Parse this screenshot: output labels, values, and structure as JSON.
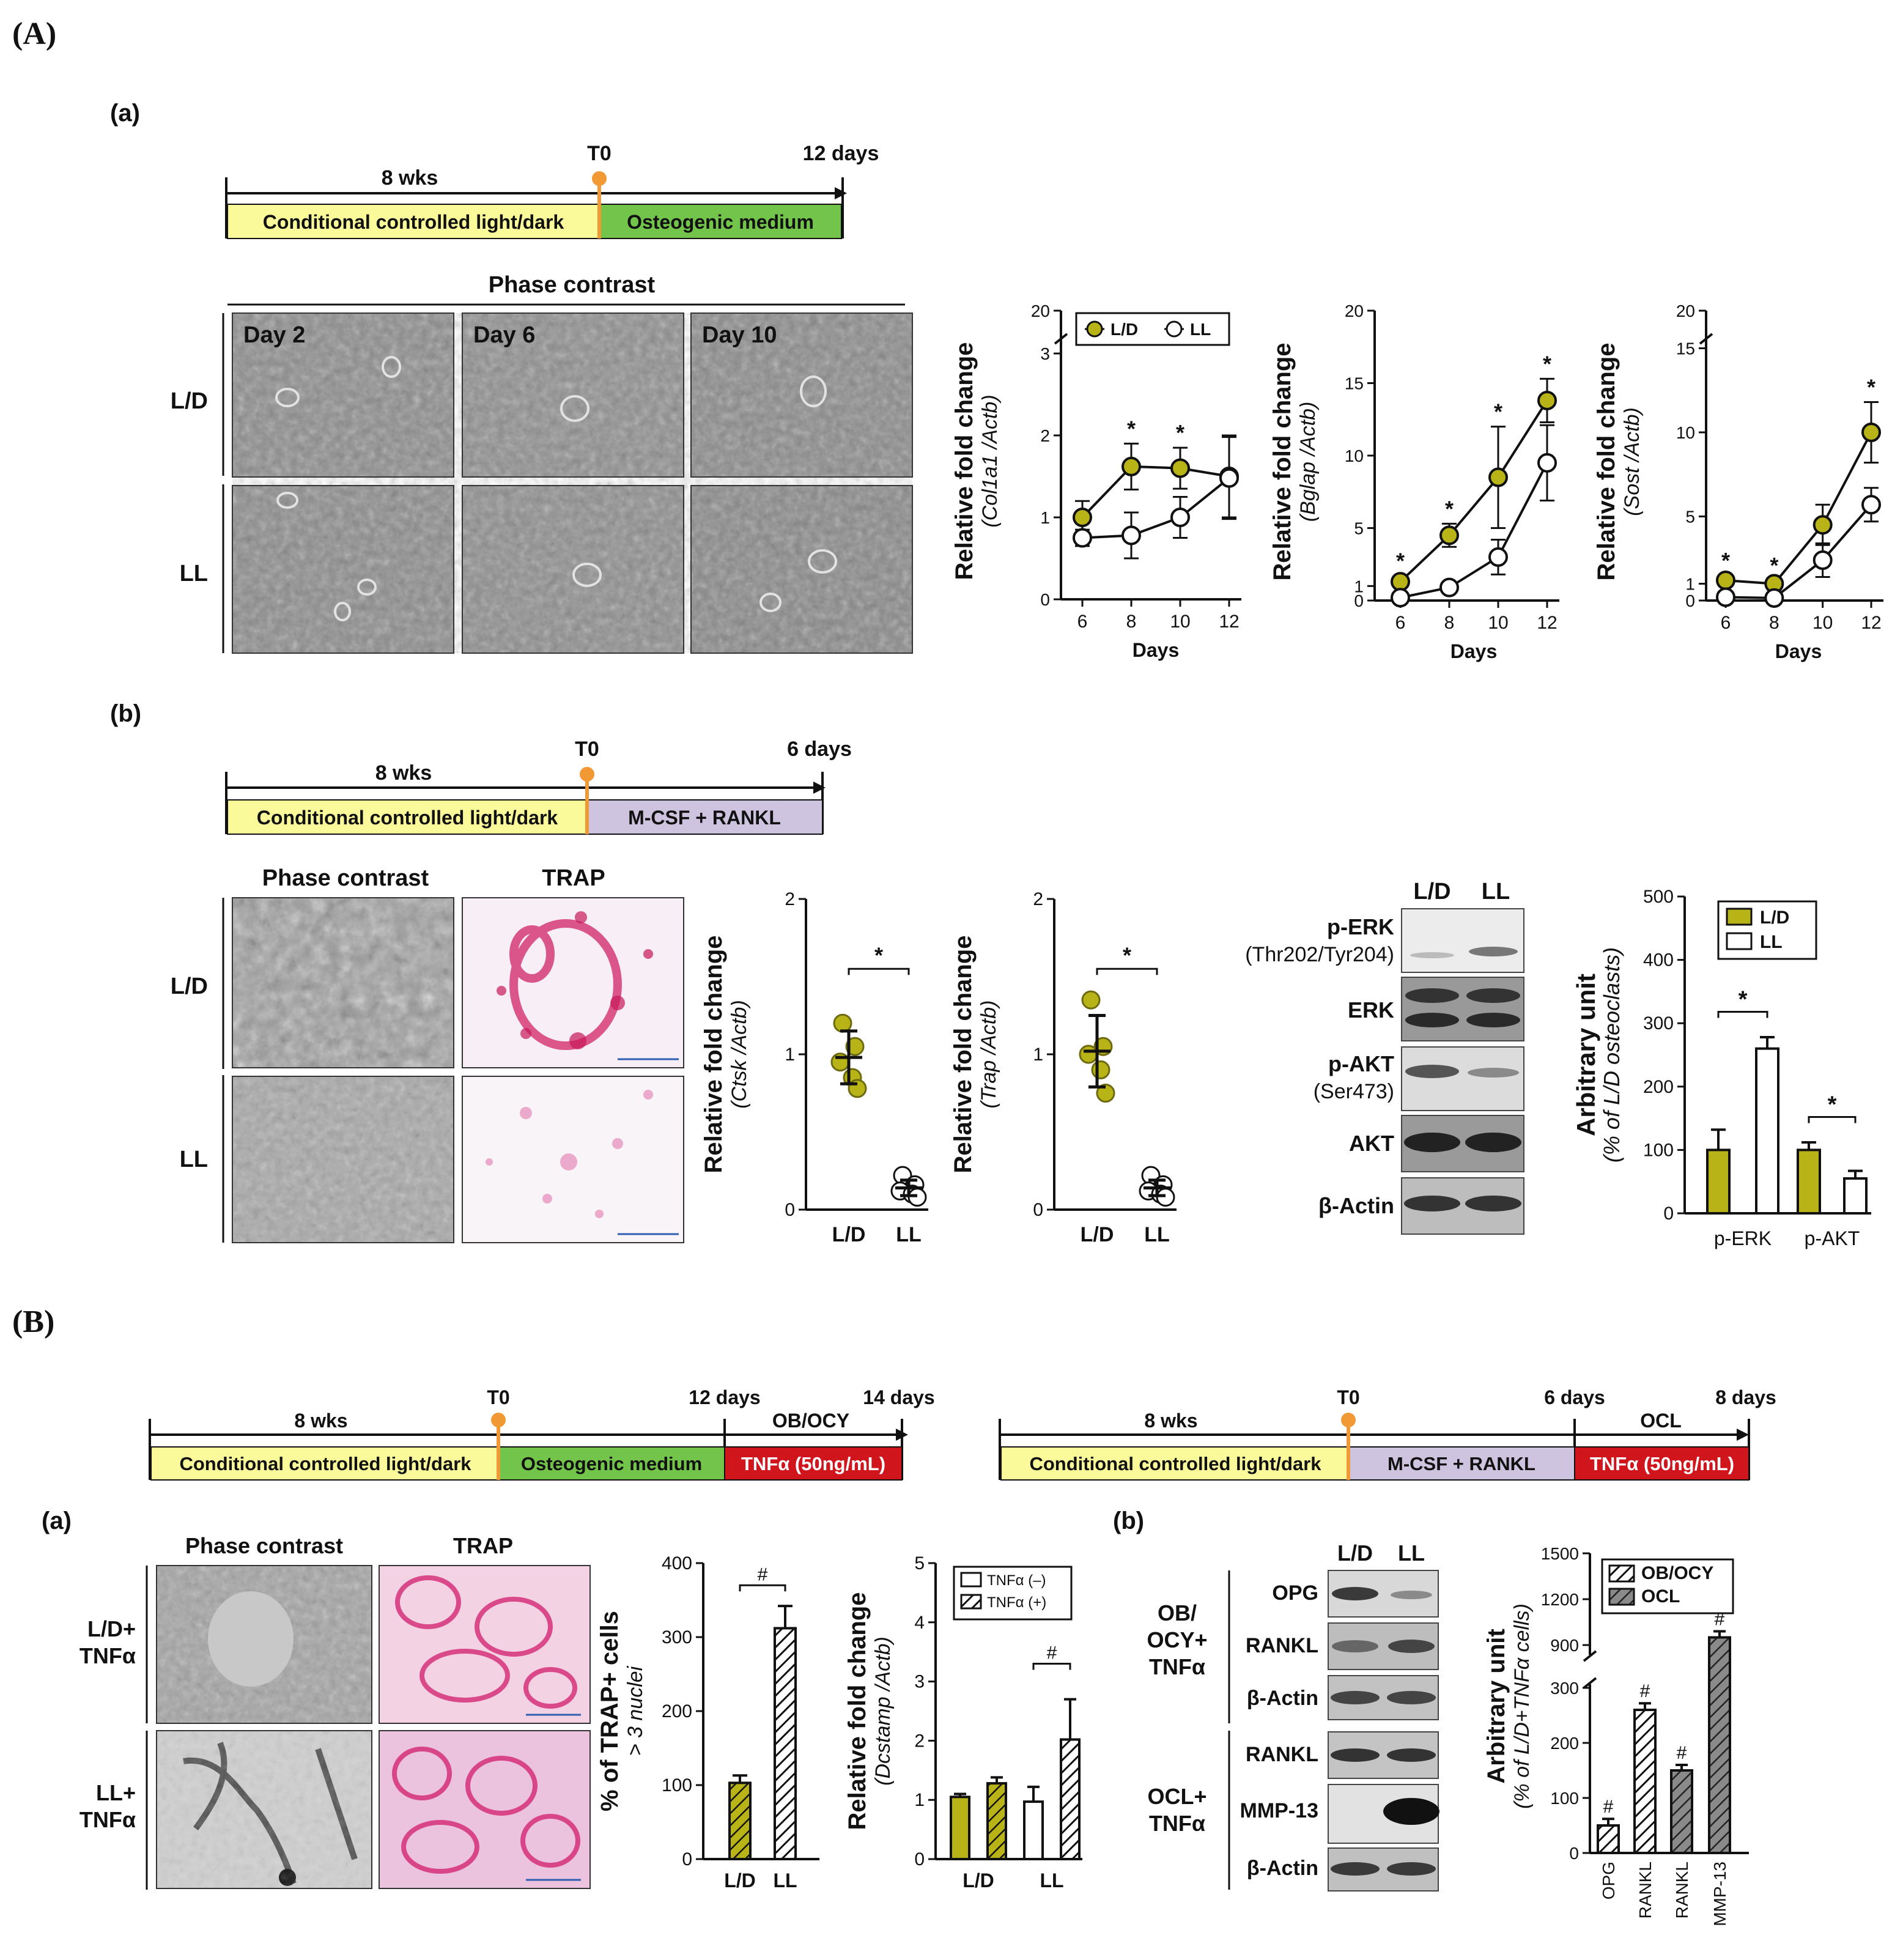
{
  "panel_labels": {
    "A": "(A)",
    "B": "(B)",
    "Aa": "(a)",
    "Ab": "(b)",
    "Ba": "(a)",
    "Bb": "(b)"
  },
  "timelines": {
    "Aa": {
      "left": "8 wks",
      "mark": "T0",
      "end": "12 days",
      "seg1": "Conditional controlled light/dark",
      "seg2": "Osteogenic medium"
    },
    "Ab": {
      "left": "8 wks",
      "mark": "T0",
      "end": "6 days",
      "seg1": "Conditional controlled light/dark",
      "seg2": "M-CSF + RANKL"
    },
    "Ba1": {
      "left": "8 wks",
      "mark": "T0",
      "mid": "12 days",
      "end": "14 days",
      "tail": "OB/OCY",
      "seg1": "Conditional controlled light/dark",
      "seg2": "Osteogenic medium",
      "seg3": "TNFα (50ng/mL)"
    },
    "Ba2": {
      "left": "8 wks",
      "mark": "T0",
      "mid": "6 days",
      "end": "8 days",
      "tail": "OCL",
      "seg1": "Conditional controlled light/dark",
      "seg2": "M-CSF + RANKL",
      "seg3": "TNFα (50ng/mL)"
    }
  },
  "micrographs": {
    "Aa": {
      "header": "Phase contrast",
      "days": [
        "Day 2",
        "Day 6",
        "Day 10"
      ],
      "rows": [
        "L/D",
        "LL"
      ]
    },
    "Ab": {
      "headers": [
        "Phase contrast",
        "TRAP"
      ],
      "rows": [
        "L/D",
        "LL"
      ]
    },
    "Ba": {
      "headers": [
        "Phase contrast",
        "TRAP"
      ],
      "rows": [
        "L/D+\nTNFα",
        "LL+\nTNFα"
      ]
    }
  },
  "westerns": {
    "Ab": {
      "lanes": [
        "L/D",
        "LL"
      ],
      "bands": [
        "p-ERK",
        "(Thr202/Tyr204)",
        "ERK",
        "p-AKT",
        "(Ser473)",
        "AKT",
        "β-Actin"
      ]
    },
    "Bb": {
      "lanes": [
        "L/D",
        "LL"
      ],
      "group1": "OB/\nOCY+\nTNFα",
      "group2": "OCL+\nTNFα",
      "bands1": [
        "OPG",
        "RANKL",
        "β-Actin"
      ],
      "bands2": [
        "RANKL",
        "MMP-13",
        "β-Actin"
      ]
    }
  },
  "chart_data": [
    {
      "type": "line",
      "id": "col1a1",
      "ylabel": "Relative fold change",
      "ylabel2": "(Col1a1 /Actb)",
      "xlabel": "Days",
      "x": [
        6,
        8,
        10,
        12
      ],
      "series": [
        {
          "name": "L/D",
          "values": [
            1.0,
            1.62,
            1.6,
            1.5
          ],
          "err": [
            0.2,
            0.28,
            0.25,
            0.5
          ],
          "fill": "#b8b418"
        },
        {
          "name": "LL",
          "values": [
            0.75,
            0.78,
            1.0,
            1.48
          ],
          "err": [
            0.1,
            0.28,
            0.25,
            0.5
          ],
          "fill": "#ffffff"
        }
      ],
      "sig": [
        "",
        "*",
        "*",
        ""
      ],
      "yticks": [
        "0",
        "1",
        "2",
        "3",
        "20"
      ],
      "xticks": [
        "6",
        "8",
        "10",
        "12"
      ]
    },
    {
      "type": "line",
      "id": "bglap",
      "ylabel": "Relative fold change",
      "ylabel2": "(Bglap /Actb)",
      "xlabel": "Days",
      "x": [
        6,
        8,
        10,
        12
      ],
      "series": [
        {
          "name": "L/D",
          "values": [
            1.3,
            4.5,
            8.5,
            13.8
          ],
          "err": [
            0.4,
            0.8,
            3.5,
            1.5
          ],
          "fill": "#b8b418"
        },
        {
          "name": "LL",
          "values": [
            0.2,
            0.9,
            3.0,
            9.5
          ],
          "err": [
            0.1,
            0.3,
            1.2,
            2.6
          ],
          "fill": "#ffffff"
        }
      ],
      "sig": [
        "*",
        "*",
        "*",
        "*"
      ],
      "yticks": [
        "0",
        "1",
        "5",
        "10",
        "15",
        "20"
      ],
      "xticks": [
        "6",
        "8",
        "10",
        "12"
      ]
    },
    {
      "type": "line",
      "id": "sost",
      "ylabel": "Relative fold change",
      "ylabel2": "(Sost /Actb)",
      "xlabel": "Days",
      "x": [
        6,
        8,
        10,
        12
      ],
      "series": [
        {
          "name": "L/D",
          "values": [
            1.2,
            1.0,
            4.5,
            10.0
          ],
          "err": [
            0.3,
            0.2,
            1.2,
            1.8
          ],
          "fill": "#b8b418"
        },
        {
          "name": "LL",
          "values": [
            0.2,
            0.15,
            2.4,
            5.7
          ],
          "err": [
            0.1,
            0.1,
            1.0,
            1.0
          ],
          "fill": "#ffffff"
        }
      ],
      "sig": [
        "*",
        "*",
        "",
        "*"
      ],
      "yticks": [
        "0",
        "1",
        "5",
        "10",
        "15",
        "20"
      ],
      "xticks": [
        "6",
        "8",
        "10",
        "12"
      ]
    },
    {
      "type": "scatter",
      "id": "ctsk",
      "ylabel": "Relative fold change",
      "ylabel2": "(Ctsk /Actb)",
      "categories": [
        "L/D",
        "LL"
      ],
      "points": [
        [
          1.2,
          1.05,
          0.95,
          0.85,
          0.78
        ],
        [
          0.22,
          0.16,
          0.12,
          0.1,
          0.08
        ]
      ],
      "means": [
        0.98,
        0.14
      ],
      "err": [
        0.17,
        0.05
      ],
      "sig": "*",
      "yticks": [
        "0",
        "1",
        "2"
      ]
    },
    {
      "type": "scatter",
      "id": "trap",
      "ylabel": "Relative fold change",
      "ylabel2": "(Trap /Actb)",
      "categories": [
        "L/D",
        "LL"
      ],
      "points": [
        [
          1.35,
          1.05,
          1.0,
          0.9,
          0.75
        ],
        [
          0.22,
          0.16,
          0.12,
          0.1,
          0.08
        ]
      ],
      "means": [
        1.02,
        0.14
      ],
      "err": [
        0.23,
        0.05
      ],
      "sig": "*",
      "yticks": [
        "0",
        "1",
        "2"
      ]
    },
    {
      "type": "bar",
      "id": "erk_akt",
      "ylabel": "Arbitrary unit",
      "ylabel2": "(% of L/D osteoclasts)",
      "categories": [
        "p-ERK",
        "p-AKT"
      ],
      "series": [
        {
          "name": "L/D",
          "values": [
            100,
            100
          ],
          "err": [
            32,
            12
          ]
        },
        {
          "name": "LL",
          "values": [
            260,
            55
          ],
          "err": [
            18,
            12
          ]
        }
      ],
      "sig": [
        "*",
        "*"
      ],
      "ylim": [
        0,
        500
      ],
      "yticks": [
        "0",
        "100",
        "200",
        "300",
        "400",
        "500"
      ]
    },
    {
      "type": "bar",
      "id": "trap_cells",
      "ylabel": "% of TRAP+ cells",
      "ylabel2": "> 3 nuclei",
      "categories": [
        "L/D",
        "LL"
      ],
      "values": [
        103,
        312
      ],
      "err": [
        10,
        30
      ],
      "sig": "#",
      "ylim": [
        0,
        400
      ],
      "yticks": [
        "0",
        "100",
        "200",
        "300",
        "400"
      ]
    },
    {
      "type": "bar",
      "id": "dcstamp",
      "ylabel": "Relative fold change",
      "ylabel2": "(Dcstamp /Actb)",
      "categories": [
        "L/D",
        "LL"
      ],
      "series": [
        {
          "name": "TNFα (–)",
          "values": [
            1.05,
            0.97
          ],
          "err": [
            0.05,
            0.25
          ]
        },
        {
          "name": "TNFα (+)",
          "values": [
            1.28,
            2.02
          ],
          "err": [
            0.1,
            0.68
          ]
        }
      ],
      "sig": "#",
      "ylim": [
        0,
        5
      ],
      "yticks": [
        "0",
        "1",
        "2",
        "3",
        "4",
        "5"
      ]
    },
    {
      "type": "bar",
      "id": "opg_rankl",
      "ylabel": "Arbitrary unit",
      "ylabel2": "(% of L/D+TNFα cells)",
      "categories": [
        "OPG",
        "RANKL",
        "RANKL",
        "MMP-13"
      ],
      "series_of": [
        "OB/OCY",
        "OB/OCY",
        "OCL",
        "OCL"
      ],
      "legend": [
        "OB/OCY",
        "OCL"
      ],
      "values": [
        50,
        260,
        150,
        950
      ],
      "err": [
        12,
        12,
        10,
        40
      ],
      "sig": [
        "#",
        "#",
        "#",
        "#"
      ],
      "yticks": [
        "0",
        "100",
        "200",
        "300",
        "900",
        "1200",
        "1500"
      ]
    }
  ]
}
